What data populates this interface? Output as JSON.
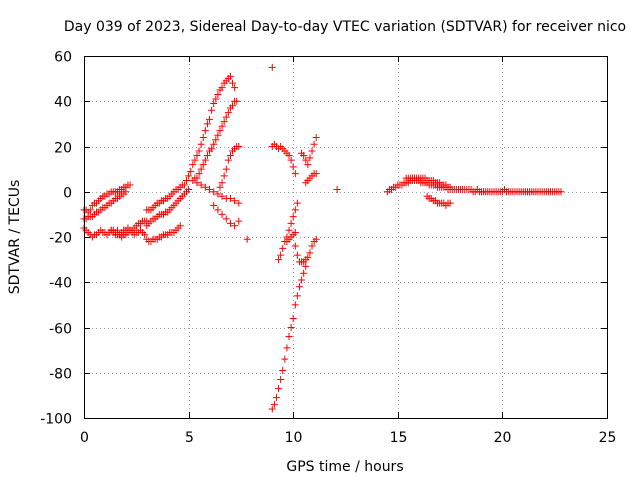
{
  "chart_data": {
    "type": "scatter",
    "title": "Day 039 of 2023, Sidereal Day-to-day VTEC variation (SDTVAR) for receiver nico",
    "xlabel": "GPS time / hours",
    "ylabel": "SDTVAR / TECUs",
    "xlim": [
      0,
      25
    ],
    "ylim": [
      -100,
      60
    ],
    "xticks": [
      "0",
      "5",
      "10",
      "15",
      "20",
      "25"
    ],
    "yticks": [
      "60",
      "40",
      "20",
      "0",
      "-20",
      "-40",
      "-60",
      "-80",
      "-100"
    ],
    "grid": true,
    "marker": "+",
    "series": [
      {
        "name": "SDTVAR",
        "color": "#ff0000",
        "x": [
          0.0,
          0.1,
          0.2,
          0.3,
          0.4,
          0.5,
          0.6,
          0.7,
          0.8,
          0.9,
          1.0,
          1.1,
          1.2,
          1.3,
          1.4,
          1.5,
          1.6,
          1.7,
          1.8,
          1.9,
          2.0,
          2.1,
          2.2,
          0.0,
          0.1,
          0.2,
          0.3,
          0.4,
          0.5,
          0.6,
          0.7,
          0.8,
          0.9,
          1.0,
          1.1,
          1.2,
          1.3,
          1.4,
          1.5,
          1.6,
          1.7,
          1.8,
          1.9,
          2.0,
          0.0,
          0.1,
          0.2,
          0.3,
          0.4,
          0.5,
          0.6,
          0.7,
          0.8,
          0.9,
          1.0,
          1.1,
          1.2,
          1.3,
          1.4,
          1.5,
          1.6,
          1.7,
          1.8,
          1.9,
          2.0,
          2.1,
          2.2,
          2.3,
          2.4,
          2.5,
          2.6,
          2.7,
          2.8,
          2.9,
          3.0,
          1.3,
          1.4,
          1.5,
          1.6,
          1.7,
          1.8,
          1.9,
          2.0,
          2.1,
          2.2,
          2.3,
          2.4,
          2.5,
          2.6,
          2.7,
          2.8,
          2.9,
          3.0,
          3.1,
          3.2,
          3.3,
          3.4,
          3.5,
          3.6,
          3.7,
          3.8,
          3.9,
          4.0,
          4.1,
          4.2,
          4.3,
          4.4,
          4.5,
          4.6,
          3.0,
          3.1,
          3.2,
          3.3,
          3.4,
          3.5,
          3.6,
          3.7,
          3.8,
          3.9,
          4.0,
          4.1,
          4.2,
          4.3,
          4.4,
          4.5,
          4.6,
          4.7,
          4.8,
          4.9,
          5.0,
          5.1,
          5.2,
          5.3,
          5.4,
          5.5,
          5.6,
          5.7,
          5.8,
          5.9,
          6.0,
          6.1,
          6.2,
          6.3,
          6.4,
          6.5,
          6.6,
          6.7,
          6.8,
          6.9,
          7.0,
          7.1,
          7.2,
          3.0,
          3.1,
          3.2,
          3.3,
          3.4,
          3.5,
          3.6,
          3.7,
          3.8,
          3.9,
          4.0,
          4.1,
          4.2,
          4.3,
          4.4,
          4.5,
          4.6,
          4.7,
          4.8,
          4.9,
          5.0,
          5.2,
          5.3,
          5.4,
          5.5,
          5.6,
          5.7,
          5.8,
          5.9,
          6.0,
          6.1,
          6.2,
          6.3,
          6.4,
          6.5,
          6.6,
          6.7,
          6.8,
          6.9,
          7.0,
          7.1,
          7.2,
          7.3,
          5.4,
          5.6,
          5.8,
          6.0,
          6.2,
          6.4,
          6.6,
          6.8,
          7.0,
          7.2,
          7.4,
          6.5,
          6.6,
          6.7,
          6.8,
          6.9,
          7.0,
          7.1,
          7.2,
          7.3,
          7.4,
          6.2,
          6.4,
          6.6,
          6.8,
          7.0,
          7.2,
          7.4,
          7.8,
          9.0,
          9.1,
          9.2,
          9.3,
          9.4,
          9.5,
          9.6,
          9.7,
          9.8,
          9.9,
          10.0,
          10.1,
          10.2,
          10.3,
          10.4,
          10.5,
          10.6,
          9.0,
          9.1,
          9.2,
          9.3,
          9.4,
          9.5,
          9.6,
          9.7,
          9.8,
          9.9,
          10.0,
          10.1,
          9.3,
          9.4,
          9.5,
          9.6,
          9.7,
          9.8,
          9.9,
          10.0,
          10.1,
          10.2,
          9.7,
          9.8,
          9.9,
          10.0,
          10.1,
          10.1,
          10.2,
          10.3,
          10.4,
          10.5,
          10.6,
          10.7,
          10.8,
          10.9,
          11.0,
          11.1,
          10.4,
          10.5,
          10.6,
          10.7,
          10.8,
          10.9,
          11.0,
          11.1,
          10.6,
          10.7,
          10.8,
          10.9,
          11.0,
          11.1,
          9.0,
          12.1,
          14.5,
          14.6,
          14.7,
          14.8,
          14.9,
          15.0,
          15.1,
          15.2,
          15.3,
          15.4,
          15.5,
          15.6,
          15.7,
          15.8,
          15.9,
          16.0,
          16.1,
          16.2,
          16.3,
          16.4,
          16.5,
          16.6,
          16.7,
          16.8,
          16.9,
          17.0,
          17.1,
          17.2,
          17.3,
          17.4,
          17.5,
          17.6,
          17.7,
          17.8,
          17.9,
          18.0,
          18.1,
          18.2,
          18.3,
          18.4,
          18.5,
          18.6,
          18.7,
          18.8,
          18.9,
          19.0,
          19.1,
          19.2,
          19.3,
          19.4,
          19.5,
          19.6,
          19.7,
          19.8,
          19.9,
          20.0,
          20.1,
          20.2,
          20.3,
          20.4,
          20.5,
          20.6,
          20.7,
          20.8,
          20.9,
          21.0,
          21.1,
          21.2,
          21.3,
          21.4,
          21.5,
          21.6,
          21.7,
          21.8,
          21.9,
          22.0,
          22.1,
          22.2,
          22.3,
          22.4,
          22.5,
          22.6,
          22.7,
          22.8,
          15.4,
          15.5,
          15.6,
          15.7,
          15.8,
          15.9,
          16.0,
          16.1,
          16.2,
          16.3,
          16.4,
          16.5,
          16.6,
          16.7,
          16.8,
          16.9,
          17.0,
          17.1,
          17.2,
          17.3,
          17.4,
          17.5,
          16.4,
          16.5,
          16.6,
          16.7,
          16.8,
          16.9,
          17.0,
          17.1,
          17.2,
          17.3,
          17.4,
          17.5
        ],
        "y": [
          -8,
          -8,
          -9,
          -8,
          -6,
          -5,
          -5,
          -4,
          -3,
          -2,
          -2,
          -1,
          -1,
          0,
          0,
          0,
          0,
          1,
          1,
          2,
          2,
          3,
          3,
          -12,
          -12,
          -11,
          -11,
          -11,
          -10,
          -9,
          -9,
          -8,
          -7,
          -7,
          -6,
          -5,
          -5,
          -4,
          -3,
          -3,
          -2,
          -1,
          -1,
          0,
          -16,
          -17,
          -18,
          -19,
          -20,
          -19,
          -19,
          -18,
          -17,
          -18,
          -18,
          -19,
          -18,
          -17,
          -17,
          -18,
          -17,
          -19,
          -20,
          -19,
          -19,
          -18,
          -17,
          -17,
          -16,
          -15,
          -14,
          -14,
          -13,
          -13,
          -13,
          -17,
          -18,
          -19,
          -19,
          -19,
          -18,
          -17,
          -17,
          -16,
          -17,
          -18,
          -19,
          -18,
          -18,
          -17,
          -18,
          -19,
          -21,
          -22,
          -22,
          -21,
          -21,
          -21,
          -20,
          -20,
          -19,
          -19,
          -19,
          -18,
          -18,
          -18,
          -17,
          -16,
          -15,
          -8,
          -8,
          -8,
          -7,
          -6,
          -5,
          -5,
          -4,
          -4,
          -3,
          -3,
          -2,
          -1,
          0,
          1,
          1,
          2,
          3,
          3,
          5,
          7,
          9,
          12,
          14,
          16,
          18,
          21,
          24,
          27,
          30,
          32,
          36,
          39,
          41,
          43,
          45,
          46,
          48,
          49,
          50,
          51,
          48,
          46,
          -15,
          -14,
          -13,
          -12,
          -12,
          -11,
          -10,
          -10,
          -10,
          -9,
          -9,
          -8,
          -7,
          -6,
          -5,
          -4,
          -3,
          -2,
          -1,
          0,
          1,
          5,
          6,
          6,
          8,
          10,
          12,
          14,
          16,
          18,
          19,
          21,
          23,
          25,
          27,
          29,
          31,
          33,
          35,
          37,
          38,
          40,
          40,
          4,
          3,
          2,
          1,
          0,
          -1,
          -2,
          -3,
          -3,
          -4,
          -5,
          2,
          4,
          7,
          10,
          14,
          16,
          18,
          19,
          20,
          20,
          -6,
          -8,
          -10,
          -12,
          -14,
          -15,
          -13,
          -21,
          -96,
          -94,
          -91,
          -87,
          -83,
          -79,
          -74,
          -69,
          -64,
          -60,
          -56,
          -50,
          -46,
          -42,
          -39,
          -36,
          -33,
          20,
          21,
          20,
          19,
          20,
          19,
          18,
          17,
          16,
          14,
          11,
          8,
          -30,
          -28,
          -25,
          -22,
          -20,
          -17,
          -14,
          -11,
          -8,
          -5,
          -22,
          -21,
          -20,
          -19,
          -18,
          -24,
          -28,
          -31,
          -31,
          -31,
          -30,
          -29,
          -27,
          -24,
          -22,
          -21,
          17,
          16,
          14,
          12,
          15,
          18,
          21,
          24,
          4,
          5,
          6,
          7,
          8,
          8,
          55,
          1,
          0,
          1,
          1,
          2,
          2,
          3,
          3,
          3,
          4,
          4,
          4,
          5,
          5,
          5,
          5,
          5,
          4,
          4,
          4,
          4,
          3,
          3,
          3,
          3,
          2,
          2,
          2,
          2,
          2,
          1,
          1,
          1,
          1,
          1,
          1,
          1,
          1,
          1,
          1,
          1,
          1,
          0,
          0,
          1,
          0,
          0,
          0,
          0,
          0,
          0,
          0,
          0,
          0,
          0,
          0,
          0,
          1,
          0,
          0,
          0,
          0,
          0,
          0,
          0,
          0,
          0,
          0,
          0,
          0,
          0,
          0,
          0,
          0,
          0,
          0,
          0,
          0,
          0,
          0,
          0,
          0,
          0,
          0,
          0,
          6,
          6,
          6,
          6,
          6,
          6,
          6,
          6,
          6,
          6,
          5,
          5,
          5,
          5,
          4,
          4,
          4,
          3,
          3,
          3,
          2,
          2,
          -2,
          -3,
          -3,
          -4,
          -4,
          -5,
          -5,
          -5,
          -5,
          -6,
          -5,
          -5
        ]
      }
    ]
  }
}
